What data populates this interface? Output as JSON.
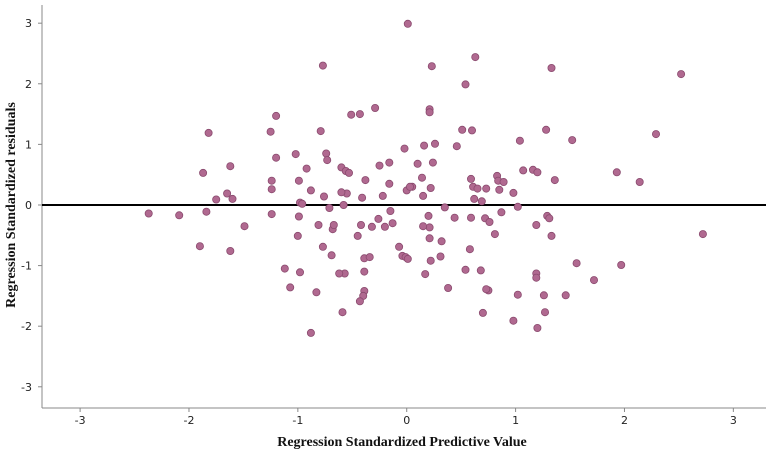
{
  "chart_data": {
    "type": "scatter",
    "title": "",
    "xlabel": "Regression Standardized Predictive Value",
    "ylabel": "Regression Standardized residuals",
    "xlim": [
      -3.35,
      3.3
    ],
    "ylim": [
      -3.35,
      3.3
    ],
    "x_ticks": [
      -3,
      -2,
      -1,
      0,
      1,
      2,
      3
    ],
    "y_ticks": [
      3,
      2,
      1,
      0,
      -1,
      -2,
      -3
    ],
    "reference_line_y": 0,
    "grid": false,
    "legend": "none",
    "marker_color": "#b06990",
    "marker_edge_color": "#8a4a6e",
    "points": [
      [
        0.01,
        2.99
      ],
      [
        0.63,
        2.44
      ],
      [
        0.23,
        2.29
      ],
      [
        -0.77,
        2.3
      ],
      [
        1.33,
        2.26
      ],
      [
        2.52,
        2.16
      ],
      [
        0.54,
        1.99
      ],
      [
        -0.29,
        1.6
      ],
      [
        0.21,
        1.58
      ],
      [
        0.21,
        1.53
      ],
      [
        -0.51,
        1.49
      ],
      [
        -0.43,
        1.5
      ],
      [
        -1.2,
        1.47
      ],
      [
        0.51,
        1.24
      ],
      [
        0.6,
        1.23
      ],
      [
        1.28,
        1.24
      ],
      [
        -1.82,
        1.19
      ],
      [
        -1.25,
        1.21
      ],
      [
        -0.79,
        1.22
      ],
      [
        2.29,
        1.17
      ],
      [
        1.52,
        1.07
      ],
      [
        1.04,
        1.06
      ],
      [
        0.16,
        0.98
      ],
      [
        0.26,
        1.01
      ],
      [
        -0.02,
        0.93
      ],
      [
        -1.02,
        0.84
      ],
      [
        -0.74,
        0.85
      ],
      [
        -0.73,
        0.74
      ],
      [
        -1.2,
        0.78
      ],
      [
        -0.6,
        0.62
      ],
      [
        -0.25,
        0.65
      ],
      [
        -0.16,
        0.7
      ],
      [
        0.1,
        0.68
      ],
      [
        0.24,
        0.7
      ],
      [
        -1.62,
        0.64
      ],
      [
        -1.87,
        0.53
      ],
      [
        -0.56,
        0.56
      ],
      [
        -0.53,
        0.53
      ],
      [
        1.07,
        0.57
      ],
      [
        1.16,
        0.58
      ],
      [
        1.2,
        0.54
      ],
      [
        1.93,
        0.54
      ],
      [
        -0.92,
        0.6
      ],
      [
        -0.99,
        0.4
      ],
      [
        -0.38,
        0.41
      ],
      [
        0.14,
        0.45
      ],
      [
        0.59,
        0.43
      ],
      [
        -0.16,
        0.35
      ],
      [
        0.05,
        0.3
      ],
      [
        0.83,
        0.48
      ],
      [
        0.84,
        0.4
      ],
      [
        0.89,
        0.38
      ],
      [
        1.36,
        0.41
      ],
      [
        2.14,
        0.38
      ],
      [
        -1.24,
        0.4
      ],
      [
        0.61,
        0.3
      ],
      [
        0.65,
        0.27
      ],
      [
        0.73,
        0.27
      ],
      [
        0.85,
        0.25
      ],
      [
        0.98,
        0.2
      ],
      [
        0.22,
        0.28
      ],
      [
        0.0,
        0.24
      ],
      [
        -0.55,
        0.19
      ],
      [
        -0.22,
        0.15
      ],
      [
        0.15,
        0.15
      ],
      [
        -1.65,
        0.19
      ],
      [
        -1.6,
        0.1
      ],
      [
        -1.75,
        0.09
      ],
      [
        -0.88,
        0.24
      ],
      [
        -0.76,
        0.14
      ],
      [
        -0.41,
        0.12
      ],
      [
        0.03,
        0.3
      ],
      [
        -1.24,
        0.26
      ],
      [
        0.62,
        0.1
      ],
      [
        0.69,
        0.06
      ],
      [
        1.02,
        -0.03
      ],
      [
        -0.98,
        0.04
      ],
      [
        -0.96,
        0.02
      ],
      [
        -0.58,
        0.0
      ],
      [
        -0.71,
        -0.05
      ],
      [
        -0.15,
        -0.1
      ],
      [
        0.35,
        -0.04
      ],
      [
        0.44,
        -0.21
      ],
      [
        0.59,
        -0.21
      ],
      [
        0.72,
        -0.22
      ],
      [
        0.87,
        -0.12
      ],
      [
        1.29,
        -0.18
      ],
      [
        1.31,
        -0.22
      ],
      [
        1.19,
        -0.33
      ],
      [
        -1.84,
        -0.11
      ],
      [
        -2.09,
        -0.17
      ],
      [
        -2.37,
        -0.14
      ],
      [
        -1.24,
        -0.15
      ],
      [
        -0.99,
        -0.19
      ],
      [
        -0.81,
        -0.33
      ],
      [
        -0.68,
        -0.4
      ],
      [
        -0.67,
        -0.33
      ],
      [
        -0.42,
        -0.33
      ],
      [
        -0.32,
        -0.36
      ],
      [
        -0.26,
        -0.23
      ],
      [
        -0.13,
        -0.3
      ],
      [
        -0.2,
        -0.36
      ],
      [
        0.21,
        -0.37
      ],
      [
        0.2,
        -0.18
      ],
      [
        0.76,
        -0.28
      ],
      [
        0.81,
        -0.48
      ],
      [
        1.33,
        -0.51
      ],
      [
        -1.49,
        -0.35
      ],
      [
        -1.9,
        -0.68
      ],
      [
        -1.62,
        -0.76
      ],
      [
        -1.0,
        -0.51
      ],
      [
        -0.77,
        -0.69
      ],
      [
        -0.69,
        -0.83
      ],
      [
        -0.57,
        -1.13
      ],
      [
        -0.45,
        -0.51
      ],
      [
        -0.39,
        -0.88
      ],
      [
        -0.34,
        -0.86
      ],
      [
        -0.07,
        -0.69
      ],
      [
        -0.04,
        -0.84
      ],
      [
        -0.01,
        -0.86
      ],
      [
        0.01,
        -0.89
      ],
      [
        0.21,
        -0.55
      ],
      [
        0.22,
        -0.92
      ],
      [
        0.32,
        -0.6
      ],
      [
        0.31,
        -0.85
      ],
      [
        0.58,
        -0.73
      ],
      [
        0.54,
        -1.07
      ],
      [
        0.68,
        -1.08
      ],
      [
        1.56,
        -0.96
      ],
      [
        1.97,
        -0.99
      ],
      [
        2.72,
        -0.48
      ],
      [
        -1.12,
        -1.05
      ],
      [
        -0.98,
        -1.11
      ],
      [
        -0.62,
        -1.13
      ],
      [
        -0.39,
        -1.1
      ],
      [
        -0.39,
        -1.42
      ],
      [
        -0.4,
        -1.5
      ],
      [
        -0.43,
        -1.59
      ],
      [
        0.17,
        -1.14
      ],
      [
        0.38,
        -1.37
      ],
      [
        0.75,
        -1.41
      ],
      [
        0.73,
        -1.39
      ],
      [
        1.02,
        -1.48
      ],
      [
        1.26,
        -1.49
      ],
      [
        1.46,
        -1.49
      ],
      [
        1.19,
        -1.13
      ],
      [
        1.19,
        -1.2
      ],
      [
        1.72,
        -1.24
      ],
      [
        -1.07,
        -1.36
      ],
      [
        -0.83,
        -1.44
      ],
      [
        -0.59,
        -1.77
      ],
      [
        0.7,
        -1.78
      ],
      [
        0.98,
        -1.91
      ],
      [
        1.2,
        -2.03
      ],
      [
        1.27,
        -1.77
      ],
      [
        -0.88,
        -2.11
      ],
      [
        0.15,
        -0.35
      ],
      [
        0.46,
        0.97
      ],
      [
        -0.6,
        0.21
      ]
    ]
  }
}
